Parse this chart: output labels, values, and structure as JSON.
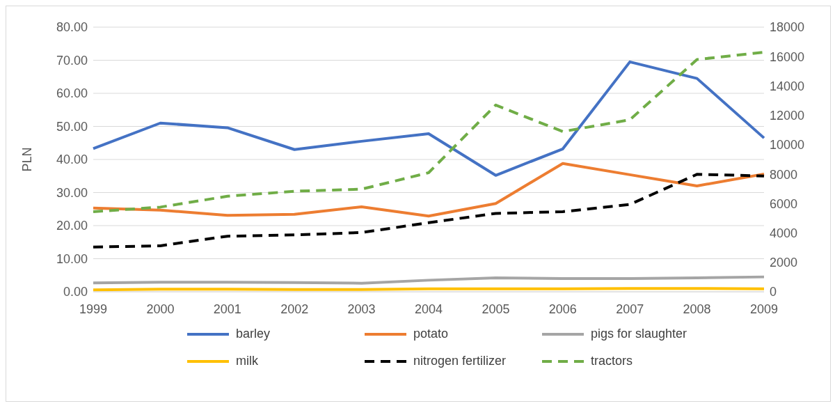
{
  "chart_data": {
    "type": "line",
    "ylabel": "PLN",
    "categories": [
      "1999",
      "2000",
      "2001",
      "2002",
      "2003",
      "2004",
      "2005",
      "2006",
      "2007",
      "2008",
      "2009"
    ],
    "series": [
      {
        "name": "barley",
        "color": "#4472c4",
        "line_style": "solid",
        "values": [
          43.3,
          51.0,
          49.6,
          43.0,
          45.5,
          47.8,
          35.2,
          43.2,
          69.5,
          64.5,
          46.5
        ]
      },
      {
        "name": "potato",
        "color": "#ed7d31",
        "line_style": "solid",
        "values": [
          25.3,
          24.7,
          23.1,
          23.4,
          25.7,
          22.9,
          26.7,
          38.8,
          35.4,
          32.0,
          35.6
        ]
      },
      {
        "name": "pigs for slaughter",
        "color": "#a5a5a5",
        "line_style": "solid",
        "values": [
          2.7,
          2.9,
          2.9,
          2.8,
          2.6,
          3.5,
          4.2,
          4.0,
          4.0,
          4.2,
          4.5
        ]
      },
      {
        "name": "milk",
        "color": "#ffc000",
        "line_style": "solid",
        "values": [
          0.6,
          0.8,
          0.8,
          0.7,
          0.7,
          0.9,
          0.9,
          0.9,
          1.0,
          1.0,
          0.9
        ]
      },
      {
        "name": "nitrogen fertilizer",
        "color": "#000000",
        "line_style": "dashed",
        "axis": "y2",
        "values": [
          3040,
          3130,
          3780,
          3870,
          4030,
          4700,
          5330,
          5450,
          5940,
          7990,
          7880
        ]
      },
      {
        "name": "tractors",
        "color": "#70ad47",
        "line_style": "dashed",
        "axis": "y2",
        "values": [
          5450,
          5760,
          6500,
          6840,
          6980,
          8100,
          12700,
          10900,
          11700,
          15800,
          16300
        ]
      }
    ],
    "ylim": [
      0,
      80
    ],
    "yticks": [
      {
        "value": 0,
        "label": "0.00"
      },
      {
        "value": 10,
        "label": "10.00"
      },
      {
        "value": 20,
        "label": "20.00"
      },
      {
        "value": 30,
        "label": "30.00"
      },
      {
        "value": 40,
        "label": "40.00"
      },
      {
        "value": 50,
        "label": "50.00"
      },
      {
        "value": 60,
        "label": "60.00"
      },
      {
        "value": 70,
        "label": "70.00"
      },
      {
        "value": 80,
        "label": "80.00"
      }
    ],
    "y2lim": [
      0,
      18000
    ],
    "y2ticks": [
      0,
      2000,
      4000,
      6000,
      8000,
      10000,
      12000,
      14000,
      16000,
      18000
    ],
    "grid": "y",
    "legend": "bottom",
    "marker": "none"
  }
}
